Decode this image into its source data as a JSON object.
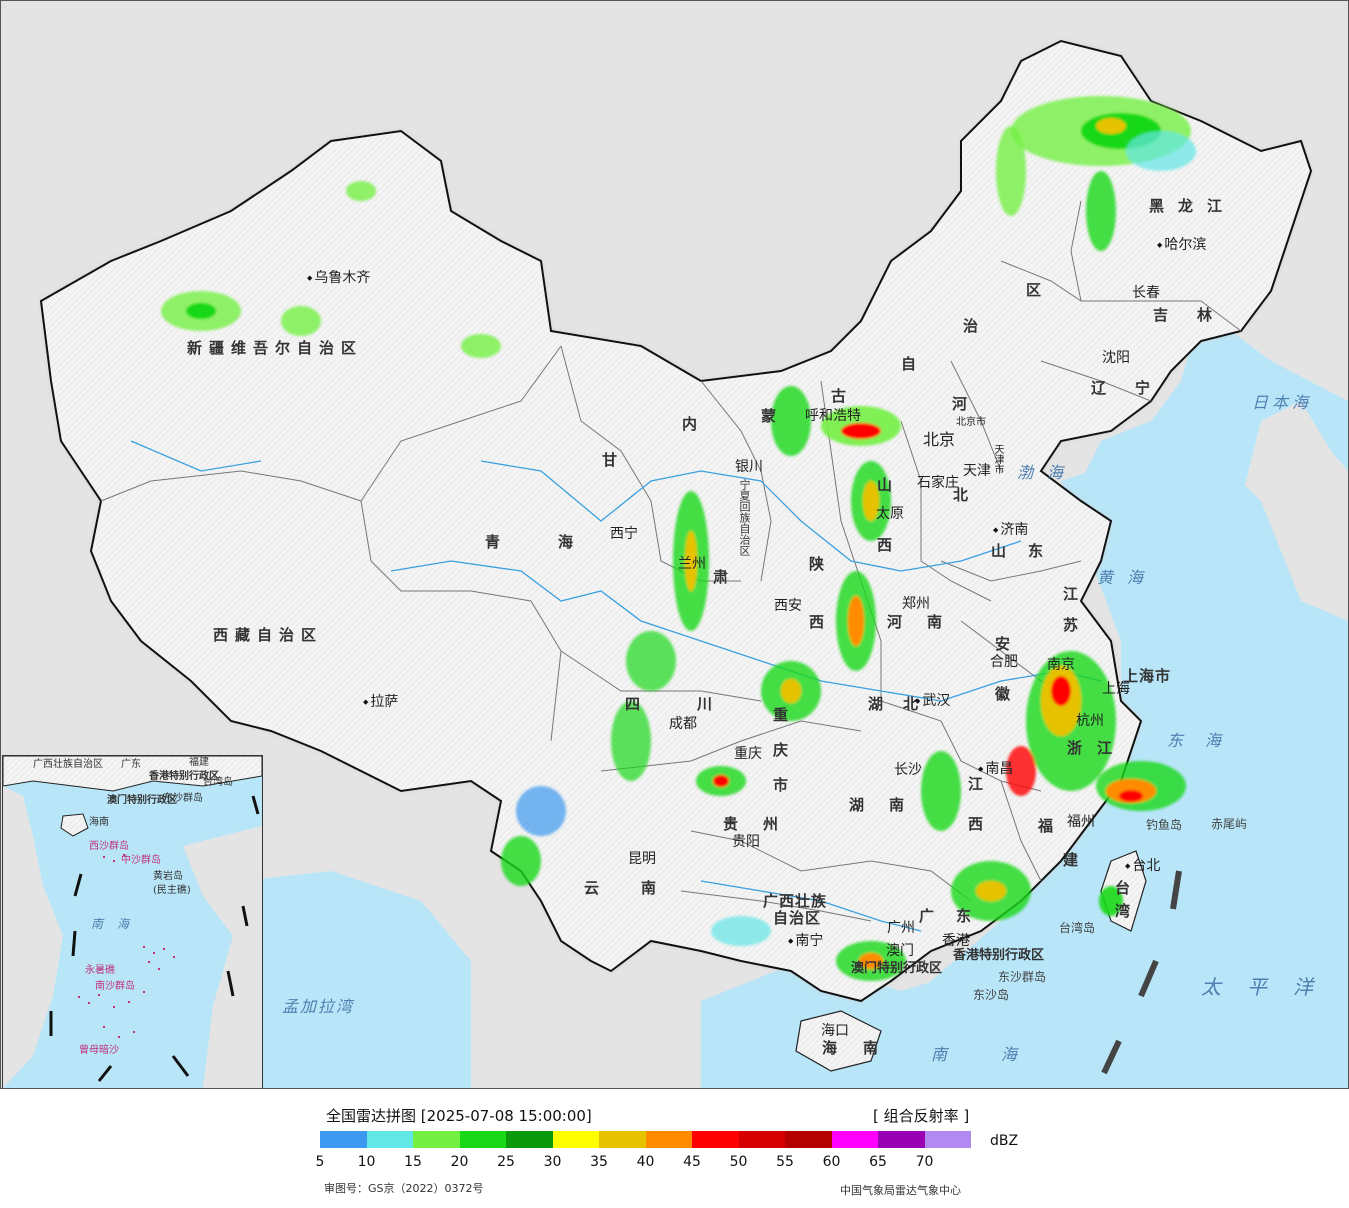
{
  "legend": {
    "title": "全国雷达拼图 [2025-07-08 15:00:00]",
    "product": "[ 组合反射率 ]",
    "unit": "dBZ",
    "colors": [
      "#3d99f0",
      "#62e6e6",
      "#74f043",
      "#18d818",
      "#0a990a",
      "#ffff00",
      "#e6c200",
      "#ff8c00",
      "#ff0000",
      "#d60000",
      "#b50000",
      "#ff00ff",
      "#9900b3",
      "#b289f0"
    ],
    "ticks": [
      "5",
      "10",
      "15",
      "20",
      "25",
      "30",
      "35",
      "40",
      "45",
      "50",
      "55",
      "60",
      "65",
      "70"
    ],
    "approval": "审图号：GS京（2022）0372号",
    "credit": "中国气象局雷达气象中心"
  },
  "regions": {
    "xinjiang": "新疆维吾尔自治区",
    "xizang": "西藏自治区",
    "qinghai_1": "青",
    "qinghai_2": "海",
    "sichuan_1": "四",
    "sichuan_2": "川",
    "yunnan_1": "云",
    "yunnan_2": "南",
    "guizhou_1": "贵",
    "guizhou_2": "州",
    "guangxi_1": "广西壮族",
    "guangxi_2": "自治区",
    "guangdong_1": "广",
    "guangdong_2": "东",
    "hunan_1": "湖",
    "hunan_2": "南",
    "hubei_1": "湖",
    "hubei_2": "北",
    "jiangxi_1": "江",
    "jiangxi_2": "西",
    "fujian_1": "福",
    "fujian_2": "建",
    "zhejiang_1": "浙",
    "zhejiang_2": "江",
    "anhui_1": "安",
    "anhui_2": "徽",
    "jiangsu_1": "江",
    "jiangsu_2": "苏",
    "shanghai": "上海市",
    "shandong_1": "山",
    "shandong_2": "东",
    "henan_1": "河",
    "henan_2": "南",
    "shaanxi_1": "陕",
    "shaanxi_2": "西",
    "shanxi_1": "山",
    "shanxi_2": "西",
    "hebei_1": "河",
    "hebei_2": "北",
    "chongqing": "重庆市",
    "gansu_1": "甘",
    "gansu_2": "肃",
    "ningxia": "宁夏回族自治区",
    "neimenggu_1": "内",
    "neimenggu_2": "蒙",
    "neimenggu_3": "古",
    "neimenggu_4": "自",
    "neimenggu_5": "治",
    "neimenggu_6": "区",
    "liaoning_1": "辽",
    "liaoning_2": "宁",
    "jilin_1": "吉",
    "jilin_2": "林",
    "heilongjiang": "黑龙江",
    "hainan_1": "海",
    "hainan_2": "南",
    "taiwan_1": "台",
    "taiwan_2": "湾",
    "hongkong": "香港特别行政区",
    "macau": "澳门特别行政区"
  },
  "cities": {
    "urumqi": "乌鲁木齐",
    "lhasa": "拉萨",
    "xining": "西宁",
    "lanzhou": "兰州",
    "yinchuan": "银川",
    "hohhot": "呼和浩特",
    "beijing": "北京",
    "beijing_small": "北京市",
    "tianjin": "天津",
    "tianjin_small": "天津市",
    "shijiazhuang": "石家庄",
    "taiyuan": "太原",
    "jinan": "济南",
    "zhengzhou": "郑州",
    "xian": "西安",
    "hefei": "合肥",
    "nanjing": "南京",
    "shanghai": "上海",
    "hangzhou": "杭州",
    "wuhan": "武汉",
    "chengdu": "成都",
    "chongqing": "重庆",
    "changsha": "长沙",
    "nanchang": "南昌",
    "fuzhou": "福州",
    "guiyang": "贵阳",
    "kunming": "昆明",
    "nanning": "南宁",
    "guangzhou": "广州",
    "hongkong": "香港",
    "macau": "澳门",
    "haikou": "海口",
    "taipei": "台北",
    "shenyang": "沈阳",
    "changchun": "长春",
    "harbin": "哈尔滨"
  },
  "seas": {
    "japan": "日本海",
    "bohai": "渤海",
    "yellow": "黄海",
    "east": "东海",
    "south": "南海",
    "pacific": "太平洋",
    "bengal": "孟加拉湾"
  },
  "islands": {
    "diaoyu": "钓鱼岛",
    "chiwei": "赤尾屿",
    "taiwan_island": "台湾岛",
    "dongsha_islands": "东沙群岛",
    "dongsha_island": "东沙岛"
  },
  "inset": {
    "guangxi": "广西壮族自治区",
    "guangdong": "广东",
    "fujian": "福建",
    "taiwan": "台湾岛",
    "hongkong": "香港特别行政区",
    "macau": "澳门特别行政区",
    "dongsha": "东沙群岛",
    "hainan": "海南",
    "xisha": "西沙群岛",
    "zhongsha_1": "中沙群岛",
    "huangyan_1": "黄岩岛",
    "huangyan_2": "(民主礁)",
    "nanhai": "南海",
    "zhongsha_2": "永暑礁",
    "nansha": "南沙群岛",
    "zengmu": "曾母暗沙"
  }
}
